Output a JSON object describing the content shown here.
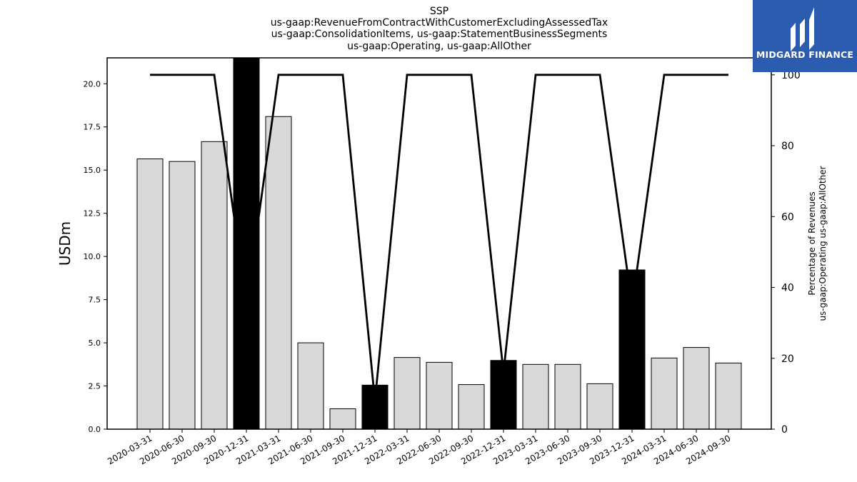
{
  "chart_data": {
    "type": "bar",
    "title_lines": [
      "SSP",
      "us-gaap:RevenueFromContractWithCustomerExcludingAssessedTax",
      "us-gaap:ConsolidationItems, us-gaap:StatementBusinessSegments",
      "us-gaap:Operating, us-gaap:AllOther"
    ],
    "ylabel": "USDm",
    "y2label_lines": [
      "Percentage of Revenues",
      "us-gaap:Operating us-gaap:AllOther"
    ],
    "ylim": [
      0,
      21.5
    ],
    "y2lim": [
      0,
      104.8
    ],
    "yticks": [
      0.0,
      2.5,
      5.0,
      7.5,
      10.0,
      12.5,
      15.0,
      17.5,
      20.0
    ],
    "y2ticks": [
      0,
      20,
      40,
      60,
      80,
      100
    ],
    "categories": [
      "2020-03-31",
      "2020-06-30",
      "2020-09-30",
      "2020-12-31",
      "2021-03-31",
      "2021-06-30",
      "2021-09-30",
      "2021-12-31",
      "2022-03-31",
      "2022-06-30",
      "2022-09-30",
      "2022-12-31",
      "2023-03-31",
      "2023-06-30",
      "2023-09-30",
      "2023-12-31",
      "2024-03-31",
      "2024-06-30",
      "2024-09-30"
    ],
    "series": [
      {
        "type": "bar",
        "values": [
          15.65,
          15.5,
          16.65,
          21.5,
          18.1,
          5.0,
          1.18,
          2.55,
          4.15,
          3.87,
          2.58,
          3.98,
          3.75,
          3.75,
          2.63,
          9.22,
          4.12,
          4.73,
          3.83
        ],
        "highlight": [
          false,
          false,
          false,
          true,
          false,
          false,
          false,
          true,
          false,
          false,
          false,
          true,
          false,
          false,
          false,
          true,
          false,
          false,
          false
        ]
      },
      {
        "type": "line",
        "axis": "right",
        "values": [
          100,
          100,
          100,
          35,
          100,
          100,
          100,
          8,
          100,
          100,
          100,
          16,
          100,
          100,
          100,
          35,
          100,
          100,
          100
        ]
      }
    ],
    "colors": {
      "bar": "#d9d9d9",
      "bar_highlight": "#000000",
      "line": "#000000"
    }
  },
  "logo": {
    "text": "MIDGARD FINANCE",
    "background": "#2b5cb0"
  }
}
